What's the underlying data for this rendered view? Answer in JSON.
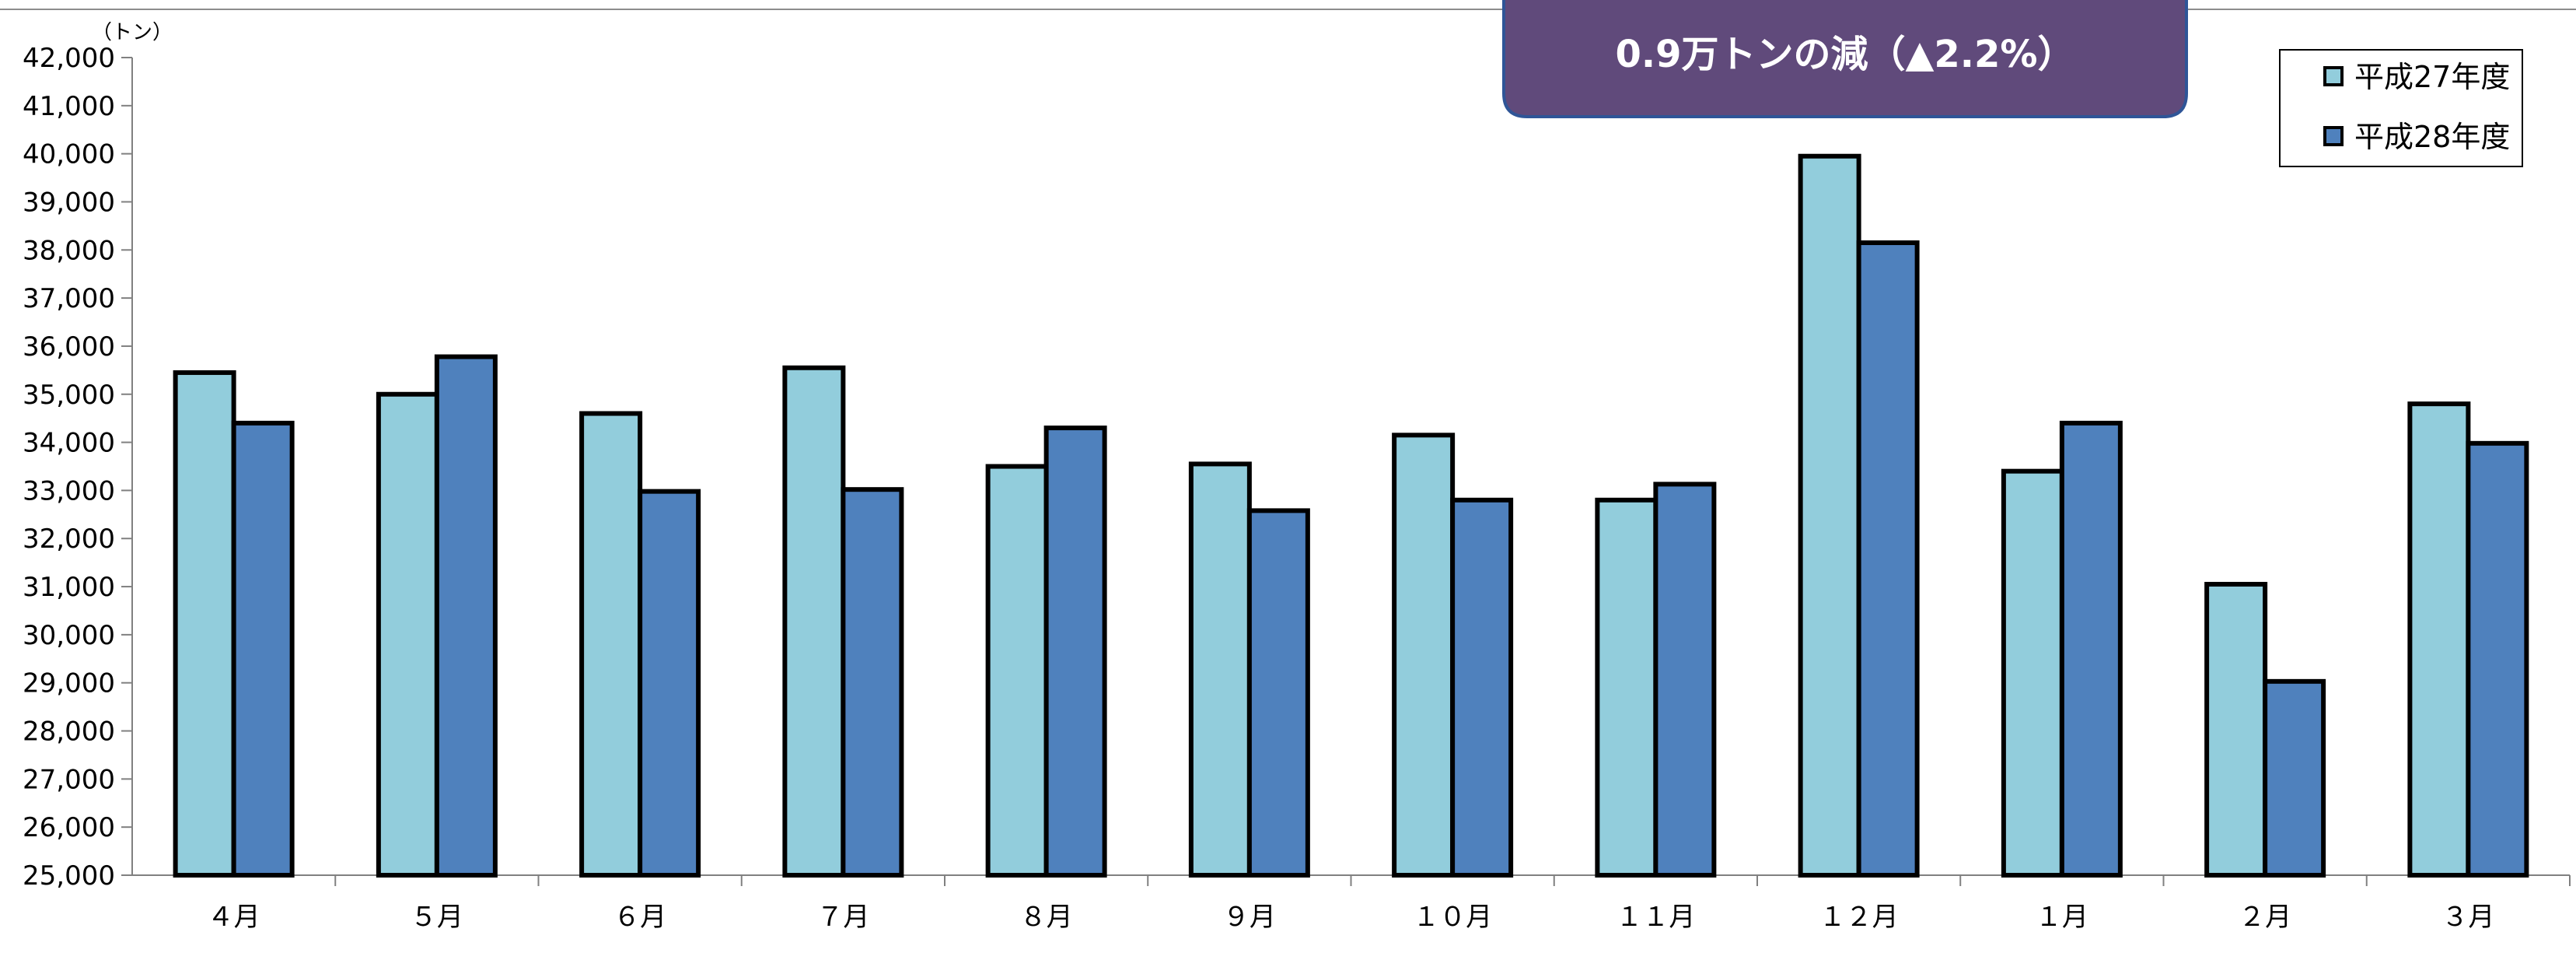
{
  "chart_data": {
    "type": "bar",
    "y_unit": "（トン）",
    "ylim": [
      25000,
      42000
    ],
    "ytick_step": 1000,
    "ytick_labels": [
      "25,000",
      "26,000",
      "27,000",
      "28,000",
      "29,000",
      "30,000",
      "31,000",
      "32,000",
      "33,000",
      "34,000",
      "35,000",
      "36,000",
      "37,000",
      "38,000",
      "39,000",
      "40,000",
      "41,000",
      "42,000"
    ],
    "categories": [
      "４月",
      "５月",
      "６月",
      "７月",
      "８月",
      "９月",
      "１０月",
      "１１月",
      "１２月",
      "１月",
      "２月",
      "３月"
    ],
    "series": [
      {
        "name": "平成27年度",
        "color": "#92CDDC",
        "values": [
          35450,
          35000,
          34600,
          35550,
          33500,
          33550,
          34150,
          32800,
          39950,
          33400,
          31050,
          34800
        ]
      },
      {
        "name": "平成28年度",
        "color": "#4F81BD",
        "values": [
          34400,
          35780,
          32980,
          33020,
          34300,
          32580,
          32800,
          33130,
          38150,
          34400,
          29030,
          33980
        ]
      }
    ],
    "grid": false,
    "legend_position": "top-right",
    "annotation": {
      "line2": "0.9万トンの減（▲2.2%）",
      "background": "#604A7B"
    }
  }
}
